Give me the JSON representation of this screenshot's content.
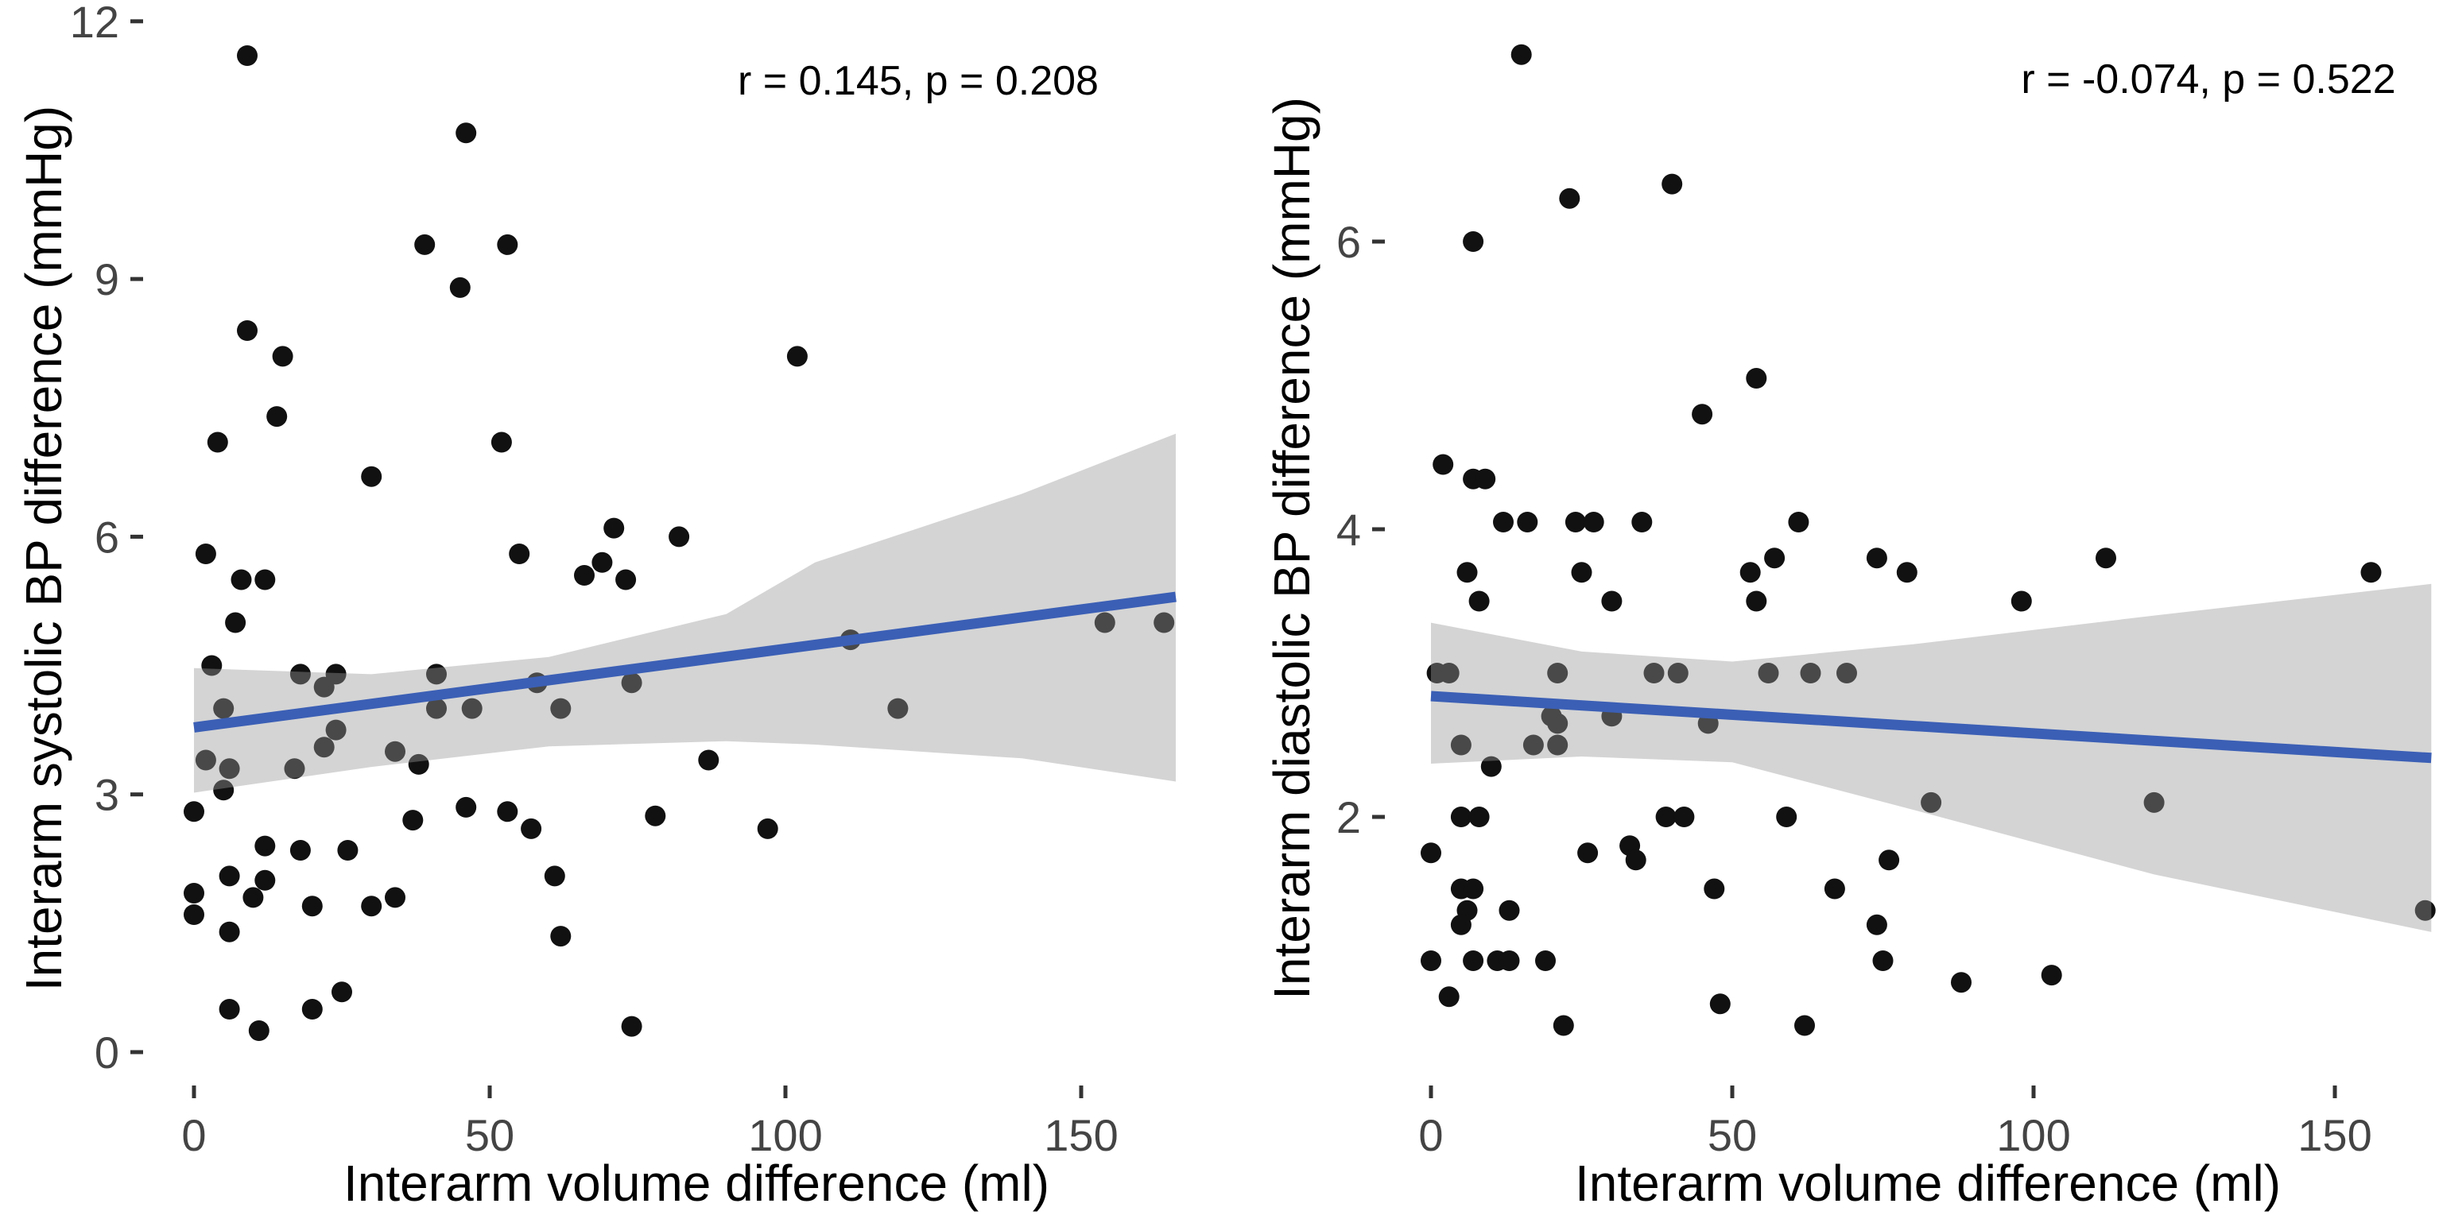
{
  "figure": {
    "background": "#ffffff",
    "dot_color": "#111111",
    "line_color": "#3B5FB5",
    "band_color": "rgba(153,153,153,0.42)",
    "tick_mark_color": "#333333",
    "tick_label_color": "#444444",
    "axis_title_color": "#000000"
  },
  "chart_data": [
    {
      "type": "scatter",
      "title": "",
      "xlabel": "Interarm volume difference (ml)",
      "ylabel": "Interarm systolic BP difference (mmHg)",
      "annotation": "r = 0.145, p = 0.208",
      "r": 0.145,
      "p": 0.208,
      "x_ticks": [
        0,
        50,
        100,
        150
      ],
      "y_ticks": [
        0,
        3,
        6,
        9,
        12
      ],
      "xlim": [
        -8,
        173
      ],
      "ylim": [
        -0.4,
        12.2
      ],
      "grid": false,
      "legend": "none",
      "points": [
        [
          9,
          11.6
        ],
        [
          46,
          10.7
        ],
        [
          39,
          9.4
        ],
        [
          53,
          9.4
        ],
        [
          45,
          8.9
        ],
        [
          9,
          8.4
        ],
        [
          15,
          8.1
        ],
        [
          102,
          8.1
        ],
        [
          14,
          7.4
        ],
        [
          4,
          7.1
        ],
        [
          52,
          7.1
        ],
        [
          30,
          6.7
        ],
        [
          71,
          6.1
        ],
        [
          82,
          6.0
        ],
        [
          2,
          5.8
        ],
        [
          8,
          5.5
        ],
        [
          12,
          5.5
        ],
        [
          55,
          5.8
        ],
        [
          69,
          5.7
        ],
        [
          66,
          5.55
        ],
        [
          73,
          5.5
        ],
        [
          7,
          5.0
        ],
        [
          154,
          5.0
        ],
        [
          164,
          5.0
        ],
        [
          111,
          4.8
        ],
        [
          3,
          4.5
        ],
        [
          18,
          4.4
        ],
        [
          22,
          4.25
        ],
        [
          24,
          4.4
        ],
        [
          5,
          4.0
        ],
        [
          41,
          4.4
        ],
        [
          41,
          4.0
        ],
        [
          47,
          4.0
        ],
        [
          58,
          4.3
        ],
        [
          62,
          4.0
        ],
        [
          74,
          4.3
        ],
        [
          119,
          4.0
        ],
        [
          24,
          3.75
        ],
        [
          22,
          3.55
        ],
        [
          2,
          3.4
        ],
        [
          6,
          3.3
        ],
        [
          17,
          3.3
        ],
        [
          5,
          3.05
        ],
        [
          34,
          3.5
        ],
        [
          38,
          3.35
        ],
        [
          87,
          3.4
        ],
        [
          0,
          2.8
        ],
        [
          37,
          2.7
        ],
        [
          46,
          2.85
        ],
        [
          53,
          2.8
        ],
        [
          57,
          2.6
        ],
        [
          78,
          2.75
        ],
        [
          97,
          2.6
        ],
        [
          12,
          2.4
        ],
        [
          18,
          2.35
        ],
        [
          26,
          2.35
        ],
        [
          6,
          2.05
        ],
        [
          12,
          2.0
        ],
        [
          61,
          2.05
        ],
        [
          0,
          1.85
        ],
        [
          10,
          1.8
        ],
        [
          0,
          1.6
        ],
        [
          20,
          1.7
        ],
        [
          30,
          1.7
        ],
        [
          34,
          1.8
        ],
        [
          6,
          1.4
        ],
        [
          62,
          1.35
        ],
        [
          6,
          0.5
        ],
        [
          11,
          0.25
        ],
        [
          20,
          0.5
        ],
        [
          25,
          0.7
        ],
        [
          74,
          0.3
        ]
      ],
      "regression": {
        "x": [
          0,
          166
        ],
        "y": [
          3.78,
          5.3
        ]
      },
      "ci_band": {
        "x": [
          0,
          30,
          60,
          90,
          105,
          140,
          166
        ],
        "top": [
          4.47,
          4.4,
          4.6,
          5.1,
          5.7,
          6.5,
          7.2
        ],
        "bottom": [
          3.02,
          3.32,
          3.56,
          3.62,
          3.58,
          3.42,
          3.15
        ]
      }
    },
    {
      "type": "scatter",
      "title": "",
      "xlabel": "Interarm volume difference (ml)",
      "ylabel": "Interarm diastolic BP difference (mmHg)",
      "annotation": "r = -0.074, p = 0.522",
      "r": -0.074,
      "p": 0.522,
      "x_ticks": [
        0,
        50,
        100,
        150
      ],
      "y_ticks": [
        2,
        4,
        6
      ],
      "xlim": [
        -8,
        173
      ],
      "ylim": [
        0.15,
        7.6
      ],
      "grid": false,
      "legend": "none",
      "points": [
        [
          15,
          7.3
        ],
        [
          23,
          6.3
        ],
        [
          40,
          6.4
        ],
        [
          7,
          6.0
        ],
        [
          54,
          5.05
        ],
        [
          45,
          4.8
        ],
        [
          2,
          4.45
        ],
        [
          7,
          4.35
        ],
        [
          9,
          4.35
        ],
        [
          12,
          4.05
        ],
        [
          16,
          4.05
        ],
        [
          24,
          4.05
        ],
        [
          27,
          4.05
        ],
        [
          35,
          4.05
        ],
        [
          61,
          4.05
        ],
        [
          6,
          3.7
        ],
        [
          8,
          3.5
        ],
        [
          25,
          3.7
        ],
        [
          30,
          3.5
        ],
        [
          53,
          3.7
        ],
        [
          57,
          3.8
        ],
        [
          54,
          3.5
        ],
        [
          74,
          3.8
        ],
        [
          79,
          3.7
        ],
        [
          112,
          3.8
        ],
        [
          98,
          3.5
        ],
        [
          156,
          3.7
        ],
        [
          1,
          3.0
        ],
        [
          3,
          3.0
        ],
        [
          21,
          3.0
        ],
        [
          37,
          3.0
        ],
        [
          41,
          3.0
        ],
        [
          56,
          3.0
        ],
        [
          63,
          3.0
        ],
        [
          69,
          3.0
        ],
        [
          20,
          2.7
        ],
        [
          21,
          2.65
        ],
        [
          30,
          2.7
        ],
        [
          46,
          2.65
        ],
        [
          5,
          2.5
        ],
        [
          17,
          2.5
        ],
        [
          21,
          2.5
        ],
        [
          10,
          2.35
        ],
        [
          5,
          2.0
        ],
        [
          8,
          2.0
        ],
        [
          39,
          2.0
        ],
        [
          42,
          2.0
        ],
        [
          59,
          2.0
        ],
        [
          83,
          2.1
        ],
        [
          120,
          2.1
        ],
        [
          0,
          1.75
        ],
        [
          26,
          1.75
        ],
        [
          33,
          1.8
        ],
        [
          34,
          1.7
        ],
        [
          47,
          1.5
        ],
        [
          67,
          1.5
        ],
        [
          76,
          1.7
        ],
        [
          5,
          1.5
        ],
        [
          7,
          1.5
        ],
        [
          6,
          1.35
        ],
        [
          5,
          1.25
        ],
        [
          13,
          1.35
        ],
        [
          74,
          1.25
        ],
        [
          165,
          1.35
        ],
        [
          0,
          1.0
        ],
        [
          7,
          1.0
        ],
        [
          11,
          1.0
        ],
        [
          13,
          1.0
        ],
        [
          19,
          1.0
        ],
        [
          75,
          1.0
        ],
        [
          88,
          0.85
        ],
        [
          103,
          0.9
        ],
        [
          3,
          0.75
        ],
        [
          48,
          0.7
        ],
        [
          22,
          0.55
        ],
        [
          62,
          0.55
        ]
      ],
      "regression": {
        "x": [
          0,
          166
        ],
        "y": [
          2.84,
          2.41
        ]
      },
      "ci_band": {
        "x": [
          0,
          25,
          50,
          80,
          120,
          166
        ],
        "top": [
          3.35,
          3.15,
          3.08,
          3.2,
          3.4,
          3.62
        ],
        "bottom": [
          2.37,
          2.42,
          2.38,
          2.05,
          1.6,
          1.2
        ]
      }
    }
  ]
}
